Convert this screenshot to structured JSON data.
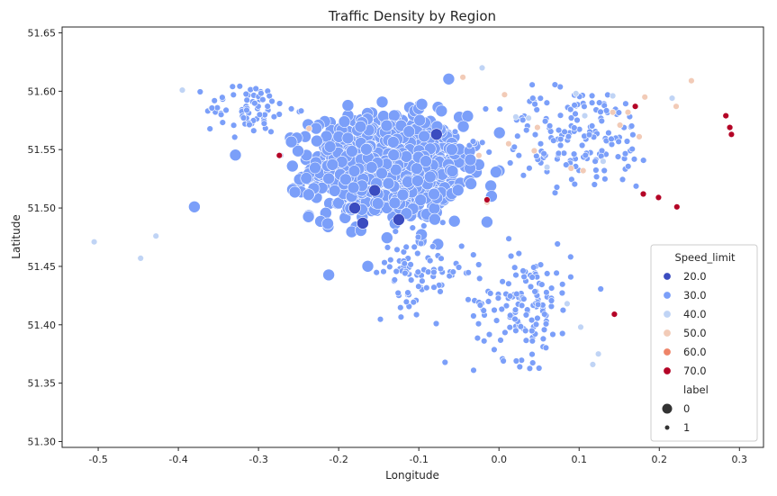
{
  "chart_data": {
    "type": "scatter",
    "title": "Traffic Density by Region",
    "xlabel": "Longitude",
    "ylabel": "Latitude",
    "xlim": [
      -0.545,
      0.33
    ],
    "ylim": [
      51.295,
      51.655
    ],
    "xticks": [
      "-0.5",
      "-0.4",
      "-0.3",
      "-0.2",
      "-0.1",
      "0.0",
      "0.1",
      "0.2",
      "0.3"
    ],
    "yticks": [
      "51.30",
      "51.35",
      "51.40",
      "51.45",
      "51.50",
      "51.55",
      "51.60",
      "51.65"
    ],
    "grid": false,
    "legend_placement": "lower-right",
    "hue_title": "Speed_limit",
    "size_title": "label",
    "hue_levels": [
      {
        "label": "20.0",
        "color": "#3b4cc0"
      },
      {
        "label": "30.0",
        "color": "#7b9ff9"
      },
      {
        "label": "40.0",
        "color": "#c0d4f5"
      },
      {
        "label": "50.0",
        "color": "#f2cbb7"
      },
      {
        "label": "60.0",
        "color": "#ee8468"
      },
      {
        "label": "70.0",
        "color": "#b40426"
      }
    ],
    "size_levels": [
      {
        "label": "0",
        "size": "large"
      },
      {
        "label": "1",
        "size": "small"
      }
    ],
    "series": [
      {
        "name": "20.0",
        "label": "0",
        "points": [
          [
            -0.18,
            51.5
          ],
          [
            -0.125,
            51.49
          ],
          [
            -0.17,
            51.487
          ],
          [
            -0.078,
            51.563
          ],
          [
            -0.155,
            51.515
          ]
        ]
      },
      {
        "name": "40.0",
        "label": "1",
        "points": [
          [
            -0.505,
            51.471
          ],
          [
            -0.447,
            51.457
          ],
          [
            -0.428,
            51.476
          ],
          [
            -0.395,
            51.601
          ],
          [
            -0.272,
            51.545
          ],
          [
            -0.021,
            51.62
          ],
          [
            0.021,
            51.578
          ],
          [
            0.037,
            51.577
          ],
          [
            0.096,
            51.598
          ],
          [
            0.107,
            51.579
          ],
          [
            0.142,
            51.596
          ],
          [
            0.216,
            51.594
          ],
          [
            0.085,
            51.418
          ],
          [
            0.102,
            51.398
          ],
          [
            0.124,
            51.375
          ],
          [
            0.117,
            51.366
          ],
          [
            0.06,
            51.535
          ],
          [
            0.13,
            51.54
          ]
        ]
      },
      {
        "name": "50.0",
        "label": "1",
        "points": [
          [
            -0.237,
            51.568
          ],
          [
            -0.045,
            51.612
          ],
          [
            0.007,
            51.597
          ],
          [
            0.048,
            51.569
          ],
          [
            0.142,
            51.582
          ],
          [
            0.161,
            51.582
          ],
          [
            0.182,
            51.595
          ],
          [
            0.221,
            51.587
          ],
          [
            0.24,
            51.609
          ],
          [
            0.012,
            51.555
          ],
          [
            -0.025,
            51.545
          ],
          [
            0.044,
            51.549
          ],
          [
            0.09,
            51.534
          ],
          [
            0.105,
            51.532
          ],
          [
            0.151,
            51.571
          ],
          [
            0.175,
            51.561
          ],
          [
            -0.015,
            51.505
          ]
        ]
      },
      {
        "name": "70.0",
        "label": "1",
        "points": [
          [
            -0.274,
            51.545
          ],
          [
            0.17,
            51.587
          ],
          [
            0.18,
            51.512
          ],
          [
            0.199,
            51.509
          ],
          [
            0.222,
            51.501
          ],
          [
            0.283,
            51.579
          ],
          [
            0.288,
            51.569
          ],
          [
            0.29,
            51.563
          ],
          [
            0.144,
            51.409
          ],
          [
            -0.015,
            51.507
          ]
        ]
      }
    ],
    "regions": [
      {
        "name": "30.0",
        "label": "0",
        "center": [
          -0.14,
          51.535
        ],
        "spread": [
          0.085,
          0.04
        ],
        "count": 900
      },
      {
        "name": "30.0",
        "label": "1",
        "center": [
          -0.31,
          51.585
        ],
        "spread": [
          0.05,
          0.02
        ],
        "count": 70
      },
      {
        "name": "30.0",
        "label": "1",
        "center": [
          0.1,
          51.56
        ],
        "spread": [
          0.09,
          0.04
        ],
        "count": 160
      },
      {
        "name": "30.0",
        "label": "1",
        "center": [
          0.03,
          51.42
        ],
        "spread": [
          0.055,
          0.045
        ],
        "count": 140
      },
      {
        "name": "30.0",
        "label": "1",
        "center": [
          -0.1,
          51.445
        ],
        "spread": [
          0.05,
          0.03
        ],
        "count": 80
      },
      {
        "name": "30.0",
        "label": "0",
        "center": [
          -0.38,
          51.501
        ],
        "spread": [
          0.0,
          0.0
        ],
        "count": 1
      },
      {
        "name": "30.0",
        "label": "0",
        "center": [
          -0.015,
          51.488
        ],
        "spread": [
          0.0,
          0.0
        ],
        "count": 1
      }
    ]
  }
}
